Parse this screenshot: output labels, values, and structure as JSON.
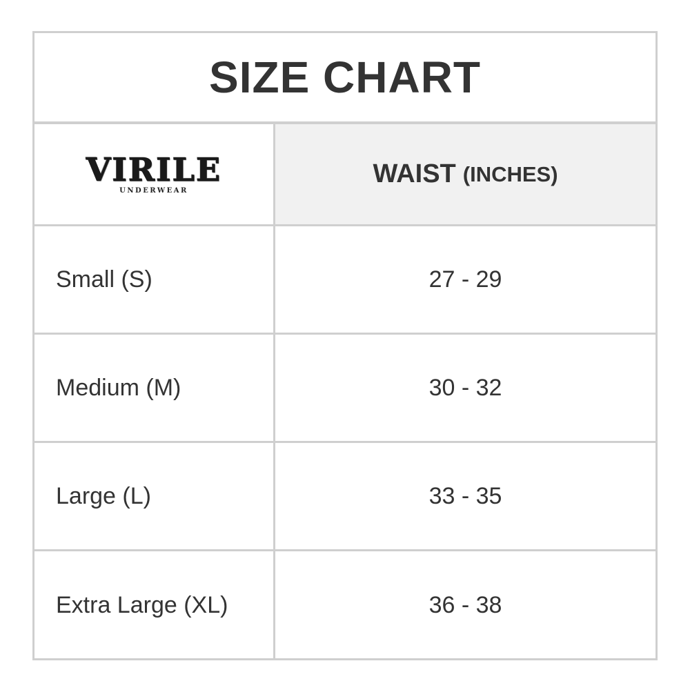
{
  "title": "SIZE CHART",
  "logo": {
    "name": "VIRILE",
    "tagline": "UNDERWEAR"
  },
  "header": {
    "measure": "WAIST",
    "unit": "(INCHES)"
  },
  "rows": [
    {
      "size": "Small (S)",
      "waist": "27 - 29"
    },
    {
      "size": "Medium (M)",
      "waist": "30 - 32"
    },
    {
      "size": "Large (L)",
      "waist": "33 - 35"
    },
    {
      "size": "Extra Large (XL)",
      "waist": "36 - 38"
    }
  ],
  "colors": {
    "border": "#cfcfcf",
    "header_bg": "#f1f1f1",
    "text": "#333333"
  }
}
